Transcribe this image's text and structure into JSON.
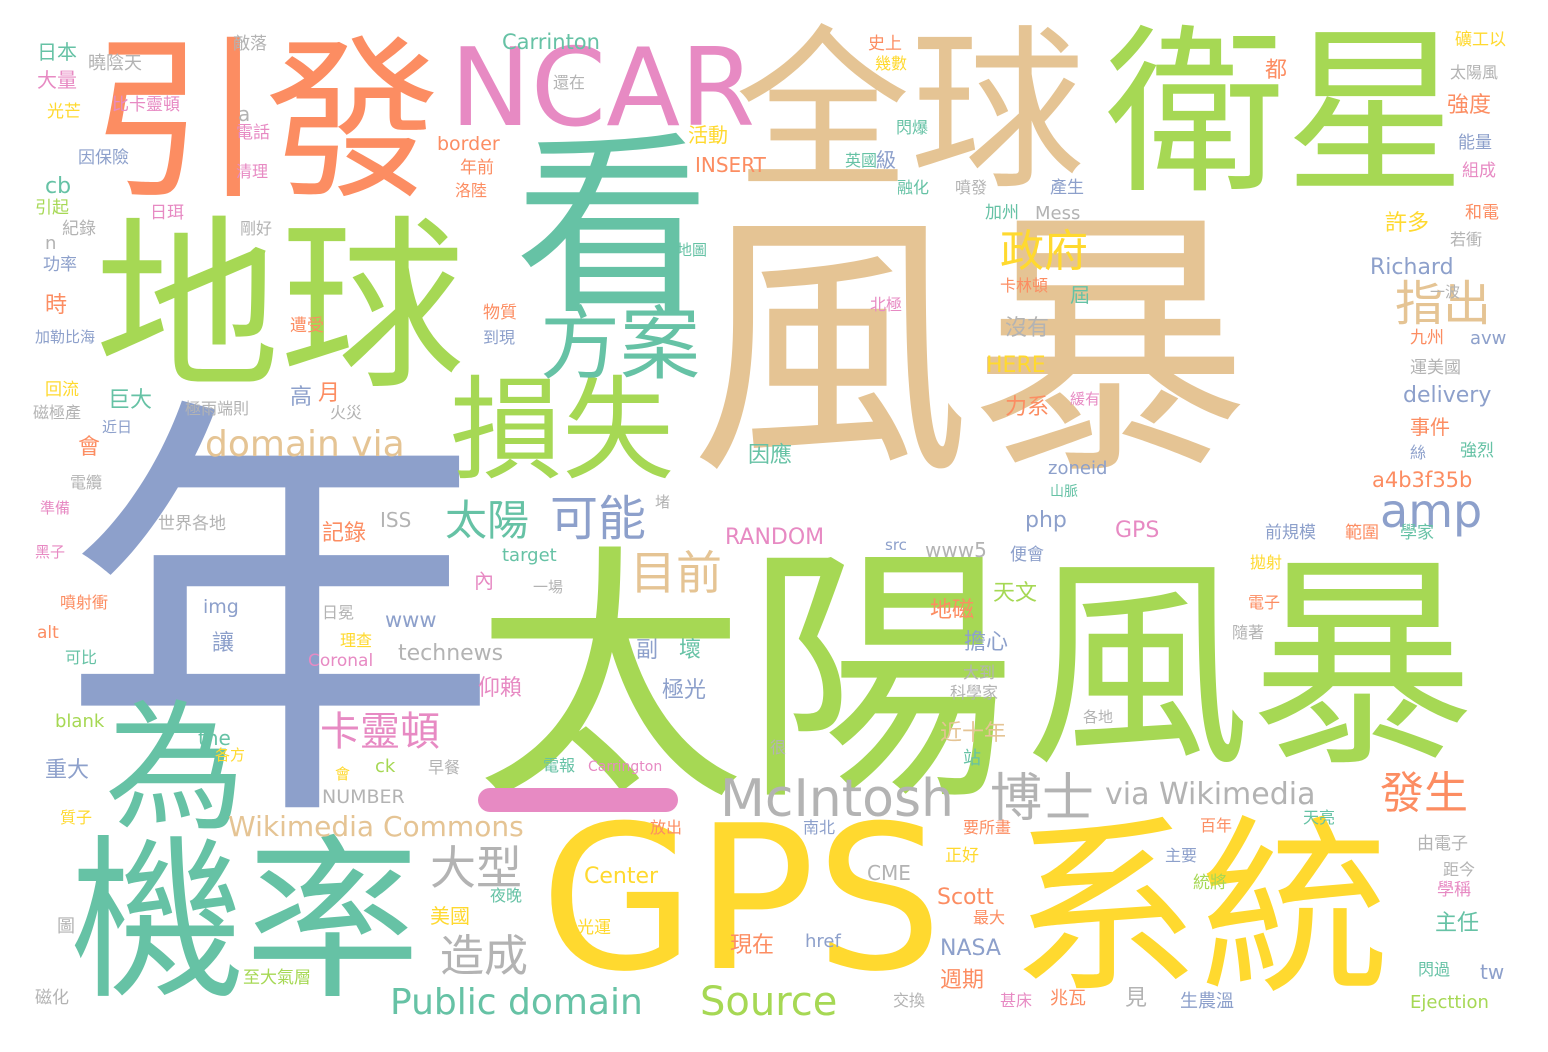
{
  "palette": {
    "tan": "#e5c494",
    "green": "#a6d854",
    "teal": "#66c2a5",
    "orange": "#fc8d62",
    "pink": "#e78ac3",
    "slate": "#8da0cb",
    "yellow": "#ffd92f",
    "gray": "#b3b3b3"
  },
  "words": [
    {
      "text": "風暴",
      "color": "tan"
    },
    {
      "text": "年",
      "color": "slate"
    },
    {
      "text": "太陽",
      "color": "green"
    },
    {
      "text": "風暴",
      "color": "green"
    },
    {
      "text": "看",
      "color": "teal"
    },
    {
      "text": "地球",
      "color": "green"
    },
    {
      "text": "全球",
      "color": "tan"
    },
    {
      "text": "衛星",
      "color": "green"
    },
    {
      "text": "引發",
      "color": "orange"
    },
    {
      "text": "NCAR",
      "color": "pink"
    },
    {
      "text": "機率",
      "color": "teal"
    },
    {
      "text": "GPS",
      "color": "yellow"
    },
    {
      "text": "系統",
      "color": "yellow"
    },
    {
      "text": "為",
      "color": "teal"
    },
    {
      "text": "損失",
      "color": "green"
    },
    {
      "text": "方案",
      "color": "teal"
    },
    {
      "text": "一",
      "color": "pink"
    },
    {
      "text": "McIntosh",
      "color": "gray"
    },
    {
      "text": "博士",
      "color": "gray"
    },
    {
      "text": "政府",
      "color": "yellow"
    },
    {
      "text": "指出",
      "color": "tan"
    },
    {
      "text": "domain via",
      "color": "tan"
    },
    {
      "text": "太陽",
      "color": "teal"
    },
    {
      "text": "可能",
      "color": "slate"
    },
    {
      "text": "amp",
      "color": "slate"
    },
    {
      "text": "目前",
      "color": "tan"
    },
    {
      "text": "卡靈頓",
      "color": "pink"
    },
    {
      "text": "大型",
      "color": "gray"
    },
    {
      "text": "造成",
      "color": "gray"
    },
    {
      "text": "Public domain",
      "color": "teal"
    },
    {
      "text": "Source",
      "color": "green"
    },
    {
      "text": "發生",
      "color": "orange"
    },
    {
      "text": "via Wikimedia",
      "color": "gray"
    },
    {
      "text": "Wikimedia Commons",
      "color": "tan"
    },
    {
      "text": "Carrinton",
      "color": "teal"
    },
    {
      "text": "日本",
      "color": "teal"
    },
    {
      "text": "大量",
      "color": "pink"
    },
    {
      "text": "光芒",
      "color": "yellow"
    },
    {
      "text": "曉陰天",
      "color": "gray"
    },
    {
      "text": "比卡靈頓",
      "color": "pink"
    },
    {
      "text": "敵落",
      "color": "gray"
    },
    {
      "text": "還在",
      "color": "gray"
    },
    {
      "text": "史上",
      "color": "orange"
    },
    {
      "text": "幾數",
      "color": "yellow"
    },
    {
      "text": "礦工以",
      "color": "yellow"
    },
    {
      "text": "太陽風",
      "color": "gray"
    },
    {
      "text": "都",
      "color": "orange"
    },
    {
      "text": "強度",
      "color": "orange"
    },
    {
      "text": "能量",
      "color": "slate"
    },
    {
      "text": "組成",
      "color": "pink"
    },
    {
      "text": "和電",
      "color": "orange"
    },
    {
      "text": "若衝",
      "color": "gray"
    },
    {
      "text": "a",
      "color": "gray"
    },
    {
      "text": "電話",
      "color": "pink"
    },
    {
      "text": "因保險",
      "color": "slate"
    },
    {
      "text": "清理",
      "color": "pink"
    },
    {
      "text": "cb",
      "color": "teal"
    },
    {
      "text": "引起",
      "color": "green"
    },
    {
      "text": "日珥",
      "color": "pink"
    },
    {
      "text": "紀錄",
      "color": "gray"
    },
    {
      "text": "剛好",
      "color": "gray"
    },
    {
      "text": "n",
      "color": "gray"
    },
    {
      "text": "功率",
      "color": "slate"
    },
    {
      "text": "時",
      "color": "orange"
    },
    {
      "text": "加勒比海",
      "color": "slate"
    },
    {
      "text": "回流",
      "color": "yellow"
    },
    {
      "text": "磁極產",
      "color": "gray"
    },
    {
      "text": "極雨端則",
      "color": "gray"
    },
    {
      "text": "火災",
      "color": "gray"
    },
    {
      "text": "近日",
      "color": "slate"
    },
    {
      "text": "會",
      "color": "orange"
    },
    {
      "text": "電纜",
      "color": "gray"
    },
    {
      "text": "準備",
      "color": "pink"
    },
    {
      "text": "黑子",
      "color": "pink"
    },
    {
      "text": "世界各地",
      "color": "gray"
    },
    {
      "text": "ISS",
      "color": "gray"
    },
    {
      "text": "border",
      "color": "orange"
    },
    {
      "text": "年前",
      "color": "orange"
    },
    {
      "text": "活動",
      "color": "yellow"
    },
    {
      "text": "洛陸",
      "color": "orange"
    },
    {
      "text": "INSERT",
      "color": "orange"
    },
    {
      "text": "英國",
      "color": "teal"
    },
    {
      "text": "級",
      "color": "slate"
    },
    {
      "text": "閃爆",
      "color": "teal"
    },
    {
      "text": "融化",
      "color": "teal"
    },
    {
      "text": "噴發",
      "color": "gray"
    },
    {
      "text": "產生",
      "color": "slate"
    },
    {
      "text": "加州",
      "color": "teal"
    },
    {
      "text": "Mess",
      "color": "gray"
    },
    {
      "text": "許多",
      "color": "yellow"
    },
    {
      "text": "Richard",
      "color": "slate"
    },
    {
      "text": "一波",
      "color": "gray"
    },
    {
      "text": "九州",
      "color": "orange"
    },
    {
      "text": "avw",
      "color": "slate"
    },
    {
      "text": "運美國",
      "color": "gray"
    },
    {
      "text": "delivery",
      "color": "slate"
    },
    {
      "text": "事件",
      "color": "orange"
    },
    {
      "text": "強烈",
      "color": "teal"
    },
    {
      "text": "a4b3f35b",
      "color": "orange"
    },
    {
      "text": "卡林頓",
      "color": "orange"
    },
    {
      "text": "北極",
      "color": "pink"
    },
    {
      "text": "屆",
      "color": "teal"
    },
    {
      "text": "沒有",
      "color": "gray"
    },
    {
      "text": "HERE",
      "color": "yellow"
    },
    {
      "text": "力系",
      "color": "orange"
    },
    {
      "text": "因應",
      "color": "teal"
    },
    {
      "text": "zoneid",
      "color": "slate"
    },
    {
      "text": "山脈",
      "color": "teal"
    },
    {
      "text": "php",
      "color": "slate"
    },
    {
      "text": "GPS",
      "color": "pink"
    },
    {
      "text": "前規模",
      "color": "slate"
    },
    {
      "text": "範圍",
      "color": "orange"
    },
    {
      "text": "學家",
      "color": "teal"
    },
    {
      "text": "RANDOM",
      "color": "pink"
    },
    {
      "text": "src",
      "color": "slate"
    },
    {
      "text": "www5",
      "color": "gray"
    },
    {
      "text": "便會",
      "color": "slate"
    },
    {
      "text": "記錄",
      "color": "orange"
    },
    {
      "text": "target",
      "color": "teal"
    },
    {
      "text": "內",
      "color": "pink"
    },
    {
      "text": "一場",
      "color": "gray"
    },
    {
      "text": "拋射",
      "color": "yellow"
    },
    {
      "text": "噴射衝",
      "color": "orange"
    },
    {
      "text": "img",
      "color": "slate"
    },
    {
      "text": "日冕",
      "color": "gray"
    },
    {
      "text": "地磁",
      "color": "orange"
    },
    {
      "text": "天文",
      "color": "green"
    },
    {
      "text": "電子",
      "color": "orange"
    },
    {
      "text": "www",
      "color": "slate"
    },
    {
      "text": "理查",
      "color": "yellow"
    },
    {
      "text": "讓",
      "color": "slate"
    },
    {
      "text": "alt",
      "color": "orange"
    },
    {
      "text": "Coronal",
      "color": "pink"
    },
    {
      "text": "擔心",
      "color": "slate"
    },
    {
      "text": "隨著",
      "color": "gray"
    },
    {
      "text": "可比",
      "color": "teal"
    },
    {
      "text": "technews",
      "color": "gray"
    },
    {
      "text": "副",
      "color": "slate"
    },
    {
      "text": "壞",
      "color": "teal"
    },
    {
      "text": "大到",
      "color": "gray"
    },
    {
      "text": "科學家",
      "color": "gray"
    },
    {
      "text": "仰賴",
      "color": "pink"
    },
    {
      "text": "極光",
      "color": "slate"
    },
    {
      "text": "blank",
      "color": "green"
    },
    {
      "text": "各地",
      "color": "gray"
    },
    {
      "text": "the",
      "color": "teal"
    },
    {
      "text": "各方",
      "color": "yellow"
    },
    {
      "text": "近十年",
      "color": "tan"
    },
    {
      "text": "很",
      "color": "gray"
    },
    {
      "text": "站",
      "color": "teal"
    },
    {
      "text": "重大",
      "color": "slate"
    },
    {
      "text": "ck",
      "color": "green"
    },
    {
      "text": "早餐",
      "color": "gray"
    },
    {
      "text": "電報",
      "color": "teal"
    },
    {
      "text": "Carrington",
      "color": "pink"
    },
    {
      "text": "會",
      "color": "yellow"
    },
    {
      "text": "NUMBER",
      "color": "gray"
    },
    {
      "text": "質子",
      "color": "yellow"
    },
    {
      "text": "放出",
      "color": "orange"
    },
    {
      "text": "南北",
      "color": "slate"
    },
    {
      "text": "要所畫",
      "color": "orange"
    },
    {
      "text": "百年",
      "color": "orange"
    },
    {
      "text": "天亮",
      "color": "teal"
    },
    {
      "text": "由電子",
      "color": "gray"
    },
    {
      "text": "距今",
      "color": "gray"
    },
    {
      "text": "正好",
      "color": "yellow"
    },
    {
      "text": "主要",
      "color": "slate"
    },
    {
      "text": "CME",
      "color": "gray"
    },
    {
      "text": "Center",
      "color": "yellow"
    },
    {
      "text": "夜晚",
      "color": "teal"
    },
    {
      "text": "統將",
      "color": "green"
    },
    {
      "text": "學稱",
      "color": "pink"
    },
    {
      "text": "Scott",
      "color": "orange"
    },
    {
      "text": "最大",
      "color": "orange"
    },
    {
      "text": "圖",
      "color": "gray"
    },
    {
      "text": "美國",
      "color": "yellow"
    },
    {
      "text": "光運",
      "color": "yellow"
    },
    {
      "text": "主任",
      "color": "teal"
    },
    {
      "text": "現在",
      "color": "orange"
    },
    {
      "text": "href",
      "color": "slate"
    },
    {
      "text": "NASA",
      "color": "slate"
    },
    {
      "text": "tw",
      "color": "slate"
    },
    {
      "text": "至大氣層",
      "color": "green"
    },
    {
      "text": "週期",
      "color": "orange"
    },
    {
      "text": "閃過",
      "color": "teal"
    },
    {
      "text": "磁化",
      "color": "gray"
    },
    {
      "text": "交換",
      "color": "gray"
    },
    {
      "text": "甚床",
      "color": "pink"
    },
    {
      "text": "兆瓦",
      "color": "orange"
    },
    {
      "text": "見",
      "color": "gray"
    },
    {
      "text": "生農溫",
      "color": "slate"
    },
    {
      "text": "Ejecttion",
      "color": "green"
    },
    {
      "text": "高",
      "color": "slate"
    },
    {
      "text": "月",
      "color": "orange"
    },
    {
      "text": "遭受",
      "color": "orange"
    },
    {
      "text": "到現",
      "color": "slate"
    },
    {
      "text": "物質",
      "color": "orange"
    },
    {
      "text": "巨大",
      "color": "teal"
    },
    {
      "text": "地圖",
      "color": "teal"
    },
    {
      "text": "緩有",
      "color": "pink"
    },
    {
      "text": "堵",
      "color": "gray"
    },
    {
      "text": "絲",
      "color": "slate"
    }
  ]
}
